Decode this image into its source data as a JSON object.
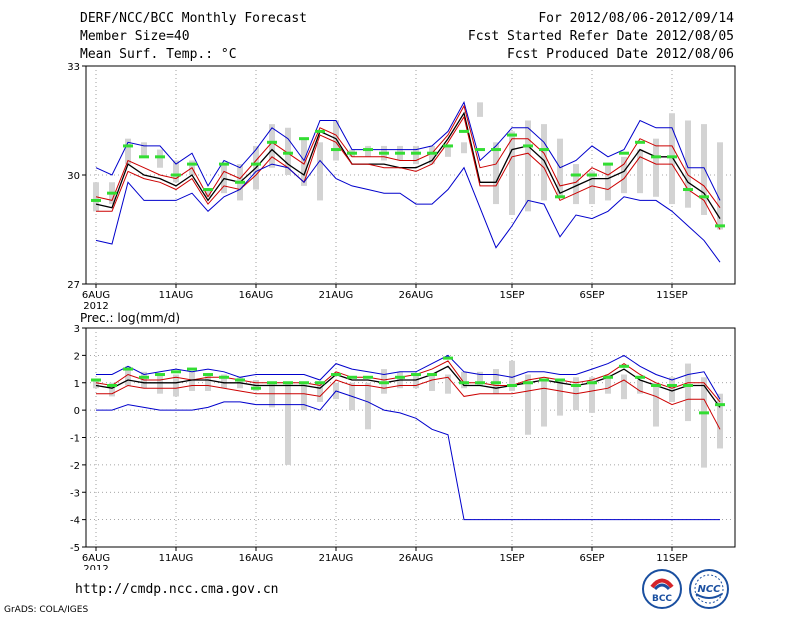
{
  "header": {
    "title": "DERF/NCC/BCC Monthly Forecast",
    "member_size": "Member Size=40",
    "variable": "Mean Surf. Temp.: °C",
    "forecast_period": "For 2012/08/06-2012/09/14",
    "started_refer_date": "Fcst Started Refer Date 2012/08/05",
    "produced_date": "Fcst Produced Date 2012/08/06"
  },
  "footer": {
    "url": "http://cmdp.ncc.cma.gov.cn",
    "grads_credit": "GrADS: COLA/IGES",
    "logos": [
      {
        "name": "bcc-logo",
        "text": "BCC"
      },
      {
        "name": "ncc-logo",
        "text": "NCC"
      }
    ]
  },
  "colors": {
    "max_min": "#0000cc",
    "spread": "#cc0000",
    "mean": "#000000",
    "member": "#33dd33",
    "bars": "#d3d3d3",
    "grid": "#888888"
  },
  "chart_data": [
    {
      "name": "temperature-chart",
      "type": "line",
      "title": "Mean Surf. Temp.: °C",
      "ylabel": "°C",
      "ylim": [
        27,
        33
      ],
      "yticks": [
        27,
        30,
        33
      ],
      "x_start_day": 6,
      "x_count": 40,
      "xtick_labels": [
        {
          "day": 6,
          "label": "6AUG",
          "sub": "2012"
        },
        {
          "day": 11,
          "label": "11AUG"
        },
        {
          "day": 16,
          "label": "16AUG"
        },
        {
          "day": 21,
          "label": "21AUG"
        },
        {
          "day": 26,
          "label": "26AUG"
        },
        {
          "day": 32,
          "label": "1SEP"
        },
        {
          "day": 37,
          "label": "6SEP"
        },
        {
          "day": 42,
          "label": "11SEP"
        }
      ],
      "bars": {
        "low": [
          29.0,
          29.2,
          30.3,
          30.5,
          30.2,
          29.8,
          30.0,
          29.4,
          29.5,
          29.3,
          29.6,
          30.2,
          30.0,
          29.7,
          29.3,
          30.4,
          30.5,
          30.5,
          30.4,
          30.4,
          30.3,
          30.3,
          30.5,
          30.6,
          31.6,
          29.2,
          28.9,
          29.0,
          29.3,
          29.4,
          29.2,
          29.2,
          29.3,
          29.5,
          29.5,
          29.4,
          29.2,
          29.1,
          28.9,
          28.5
        ],
        "high": [
          29.8,
          29.8,
          31.0,
          30.9,
          30.7,
          30.4,
          30.4,
          29.6,
          30.3,
          30.3,
          30.8,
          31.4,
          31.3,
          31.0,
          30.9,
          31.5,
          30.7,
          30.8,
          30.8,
          30.8,
          30.8,
          30.8,
          30.8,
          30.9,
          32.0,
          30.9,
          31.2,
          31.5,
          31.4,
          31.0,
          30.3,
          30.1,
          30.3,
          30.5,
          30.7,
          31.0,
          31.7,
          31.5,
          31.4,
          30.9
        ]
      },
      "series": [
        {
          "name": "ensemble-max",
          "color": "#0000cc",
          "values": [
            30.2,
            30.0,
            30.9,
            30.8,
            30.8,
            30.3,
            30.6,
            29.7,
            30.4,
            30.2,
            30.7,
            31.3,
            31.0,
            30.4,
            31.5,
            31.5,
            30.7,
            30.7,
            30.7,
            30.7,
            30.7,
            30.8,
            31.2,
            32.0,
            30.4,
            30.8,
            31.3,
            31.3,
            30.9,
            30.2,
            30.4,
            30.8,
            30.5,
            30.7,
            31.5,
            31.3,
            31.3,
            30.2,
            30.2,
            29.3
          ]
        },
        {
          "name": "mean-plus-spread",
          "color": "#cc0000",
          "values": [
            29.4,
            29.3,
            30.4,
            30.2,
            30.0,
            29.9,
            30.2,
            29.4,
            30.1,
            29.9,
            30.4,
            30.9,
            30.6,
            30.3,
            31.3,
            31.1,
            30.5,
            30.5,
            30.5,
            30.4,
            30.4,
            30.6,
            31.1,
            31.9,
            30.2,
            30.3,
            31.0,
            31.0,
            30.6,
            29.7,
            29.8,
            30.2,
            30.0,
            30.3,
            31.0,
            30.8,
            30.8,
            30.0,
            29.7,
            29.1
          ]
        },
        {
          "name": "ensemble-mean",
          "color": "#000000",
          "values": [
            29.2,
            29.1,
            30.3,
            30.0,
            29.9,
            29.7,
            30.0,
            29.3,
            29.9,
            29.8,
            30.2,
            30.7,
            30.3,
            30.0,
            31.2,
            31.0,
            30.3,
            30.3,
            30.3,
            30.2,
            30.2,
            30.4,
            31.0,
            31.7,
            29.8,
            29.8,
            30.7,
            30.8,
            30.4,
            29.5,
            29.7,
            29.9,
            29.9,
            30.1,
            30.7,
            30.5,
            30.5,
            29.8,
            29.5,
            28.8
          ]
        },
        {
          "name": "mean-minus-spread",
          "color": "#cc0000",
          "values": [
            29.0,
            29.0,
            30.1,
            29.9,
            29.8,
            29.6,
            29.9,
            29.2,
            29.7,
            29.6,
            30.0,
            30.5,
            30.2,
            29.8,
            31.1,
            30.9,
            30.3,
            30.3,
            30.2,
            30.2,
            30.1,
            30.3,
            30.9,
            31.6,
            29.7,
            29.7,
            30.5,
            30.6,
            30.2,
            29.3,
            29.5,
            29.7,
            29.6,
            29.9,
            30.5,
            30.3,
            30.3,
            29.6,
            29.3,
            28.5
          ]
        },
        {
          "name": "ensemble-min",
          "color": "#0000cc",
          "values": [
            28.2,
            28.1,
            29.8,
            29.3,
            29.3,
            29.3,
            29.5,
            29.0,
            29.4,
            29.6,
            30.1,
            30.3,
            30.2,
            29.8,
            30.4,
            29.9,
            29.7,
            29.6,
            29.5,
            29.5,
            29.2,
            29.2,
            29.6,
            30.2,
            29.1,
            28.0,
            28.6,
            29.3,
            29.2,
            28.3,
            28.9,
            28.8,
            29.0,
            29.4,
            29.3,
            29.3,
            29.0,
            28.6,
            28.2,
            27.6
          ]
        }
      ],
      "members": [
        29.3,
        29.5,
        30.8,
        30.5,
        30.5,
        30.0,
        30.3,
        29.6,
        30.3,
        29.8,
        30.3,
        30.9,
        30.6,
        31.0,
        31.2,
        30.7,
        30.6,
        30.7,
        30.6,
        30.6,
        30.6,
        30.6,
        30.8,
        31.2,
        30.7,
        30.7,
        31.1,
        30.8,
        30.7,
        29.4,
        30.0,
        30.0,
        30.3,
        30.6,
        30.9,
        30.5,
        30.5,
        29.6,
        29.4,
        28.6
      ]
    },
    {
      "name": "precipitation-chart",
      "type": "line",
      "title": "Prec.: log(mm/d)",
      "ylabel": "log(mm/d)",
      "ylim": [
        -5,
        3
      ],
      "yticks": [
        -5,
        -4,
        -3,
        -2,
        -1,
        0,
        1,
        2,
        3
      ],
      "x_start_day": 6,
      "x_count": 40,
      "xtick_labels": [
        {
          "day": 6,
          "label": "6AUG",
          "sub": "2012"
        },
        {
          "day": 11,
          "label": "11AUG"
        },
        {
          "day": 16,
          "label": "16AUG"
        },
        {
          "day": 21,
          "label": "21AUG"
        },
        {
          "day": 26,
          "label": "26AUG"
        },
        {
          "day": 32,
          "label": "1SEP"
        },
        {
          "day": 37,
          "label": "6SEP"
        },
        {
          "day": 42,
          "label": "11SEP"
        }
      ],
      "bars": {
        "low": [
          0.8,
          0.5,
          0.9,
          0.8,
          0.6,
          0.5,
          0.7,
          0.7,
          0.8,
          0.8,
          0.7,
          0.1,
          -2.0,
          0.0,
          0.3,
          0.4,
          0.0,
          -0.7,
          0.6,
          0.8,
          0.8,
          0.7,
          0.6,
          0.8,
          0.9,
          0.6,
          0.7,
          -0.9,
          -0.6,
          -0.2,
          0.0,
          -0.1,
          0.6,
          0.4,
          0.6,
          -0.6,
          0.3,
          -0.4,
          -2.1,
          -1.4
        ],
        "high": [
          1.1,
          1.0,
          1.6,
          1.4,
          1.3,
          1.3,
          1.4,
          1.3,
          1.3,
          1.2,
          1.1,
          1.0,
          1.0,
          1.0,
          1.0,
          1.0,
          1.0,
          1.0,
          1.5,
          1.4,
          1.3,
          1.3,
          1.3,
          1.4,
          1.4,
          1.5,
          1.8,
          1.3,
          1.1,
          1.1,
          1.2,
          1.2,
          1.3,
          1.3,
          1.1,
          1.0,
          1.2,
          1.7,
          1.2,
          0.6
        ]
      },
      "series": [
        {
          "name": "ensemble-max",
          "color": "#0000cc",
          "values": [
            1.3,
            1.3,
            1.6,
            1.3,
            1.4,
            1.5,
            1.4,
            1.5,
            1.4,
            1.2,
            1.3,
            1.3,
            1.3,
            1.3,
            1.1,
            1.7,
            1.5,
            1.4,
            1.3,
            1.4,
            1.4,
            1.7,
            2.0,
            1.4,
            1.3,
            1.3,
            1.2,
            1.4,
            1.4,
            1.3,
            1.3,
            1.5,
            1.7,
            2.0,
            1.6,
            1.3,
            1.1,
            1.3,
            1.4,
            0.4
          ]
        },
        {
          "name": "mean-plus-spread",
          "color": "#cc0000",
          "values": [
            1.0,
            0.9,
            1.3,
            1.1,
            1.1,
            1.2,
            1.1,
            1.2,
            1.2,
            1.1,
            1.0,
            1.0,
            1.0,
            1.0,
            0.9,
            1.4,
            1.2,
            1.2,
            1.1,
            1.2,
            1.3,
            1.5,
            1.8,
            1.0,
            1.0,
            0.9,
            0.9,
            1.1,
            1.2,
            1.1,
            1.0,
            1.1,
            1.3,
            1.7,
            1.3,
            1.0,
            0.8,
            1.0,
            1.0,
            0.3
          ]
        },
        {
          "name": "ensemble-mean",
          "color": "#000000",
          "values": [
            0.9,
            0.8,
            1.1,
            1.0,
            1.0,
            1.0,
            1.1,
            1.1,
            1.0,
            1.0,
            0.9,
            0.9,
            0.9,
            0.9,
            0.8,
            1.3,
            1.1,
            1.1,
            1.0,
            1.1,
            1.1,
            1.3,
            1.6,
            0.9,
            0.9,
            0.8,
            0.9,
            1.0,
            1.1,
            1.0,
            0.9,
            1.0,
            1.2,
            1.5,
            1.1,
            0.9,
            0.7,
            0.9,
            0.9,
            0.1
          ]
        },
        {
          "name": "mean-minus-spread",
          "color": "#cc0000",
          "values": [
            0.6,
            0.6,
            0.9,
            0.8,
            0.8,
            0.8,
            0.9,
            0.9,
            0.8,
            0.7,
            0.6,
            0.6,
            0.6,
            0.6,
            0.5,
            1.1,
            0.9,
            0.9,
            0.8,
            0.9,
            0.9,
            1.1,
            1.2,
            0.5,
            0.6,
            0.6,
            0.6,
            0.7,
            0.8,
            0.7,
            0.6,
            0.7,
            0.8,
            1.1,
            0.7,
            0.5,
            0.2,
            0.4,
            0.4,
            -0.7
          ]
        },
        {
          "name": "ensemble-min",
          "color": "#0000cc",
          "values": [
            0.0,
            0.0,
            0.2,
            0.1,
            0.0,
            0.0,
            0.0,
            0.1,
            0.3,
            0.3,
            0.2,
            0.2,
            0.2,
            0.2,
            0.0,
            0.7,
            0.5,
            0.3,
            0.0,
            -0.1,
            -0.3,
            -0.7,
            -0.9,
            -4.0,
            -4.0,
            -4.0,
            -4.0,
            -4.0,
            -4.0,
            -4.0,
            -4.0,
            -4.0,
            -4.0,
            -4.0,
            -4.0,
            -4.0,
            -4.0,
            -4.0,
            -4.0,
            -4.0
          ]
        }
      ],
      "members": [
        1.1,
        0.9,
        1.5,
        1.2,
        1.3,
        1.4,
        1.5,
        1.3,
        1.2,
        1.1,
        0.8,
        1.0,
        1.0,
        1.0,
        1.0,
        1.3,
        1.2,
        1.2,
        1.0,
        1.2,
        1.3,
        1.3,
        1.9,
        1.0,
        1.0,
        1.0,
        0.9,
        1.0,
        1.1,
        1.1,
        0.9,
        1.0,
        1.2,
        1.6,
        1.2,
        0.9,
        0.9,
        0.9,
        -0.1,
        0.2
      ]
    }
  ]
}
